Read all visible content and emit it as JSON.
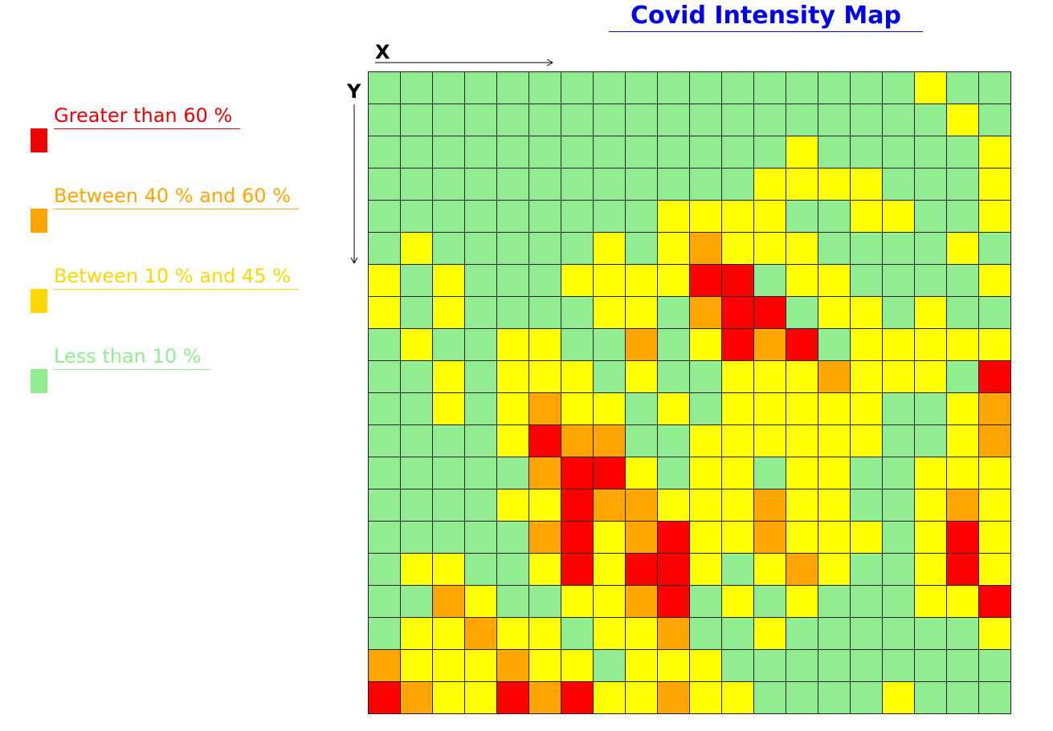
{
  "title": "Covid Intensity Map",
  "axes": {
    "x_label": "X",
    "y_label": "Y"
  },
  "legend": [
    {
      "label": "Greater than 60 %",
      "color": "#ee0000",
      "level": 3
    },
    {
      "label": "Between 40 % and 60 %",
      "color": "#ffa500",
      "level": 2
    },
    {
      "label": "Between 10 % and 45 %",
      "color": "#ffd700",
      "level": 1
    },
    {
      "label": "Less than 10 %",
      "color": "#90ee90",
      "level": 0
    }
  ],
  "chart_data": {
    "type": "heatmap",
    "title": "Covid Intensity Map",
    "xlabel": "X",
    "ylabel": "Y",
    "columns": 20,
    "rows": 20,
    "levels": {
      "0": {
        "label": "Less than 10 %",
        "color": "#90ee90"
      },
      "1": {
        "label": "Between 10 % and 45 %",
        "color": "#ffff00"
      },
      "2": {
        "label": "Between 40 % and 60 %",
        "color": "#ffa500"
      },
      "3": {
        "label": "Greater than 60 %",
        "color": "#ff0000"
      }
    },
    "grid": [
      [
        0,
        0,
        0,
        0,
        0,
        0,
        0,
        0,
        0,
        0,
        0,
        0,
        0,
        0,
        0,
        0,
        0,
        1,
        0,
        0
      ],
      [
        0,
        0,
        0,
        0,
        0,
        0,
        0,
        0,
        0,
        0,
        0,
        0,
        0,
        0,
        0,
        0,
        0,
        0,
        1,
        0
      ],
      [
        0,
        0,
        0,
        0,
        0,
        0,
        0,
        0,
        0,
        0,
        0,
        0,
        0,
        1,
        0,
        0,
        0,
        0,
        0,
        1
      ],
      [
        0,
        0,
        0,
        0,
        0,
        0,
        0,
        0,
        0,
        0,
        0,
        0,
        1,
        1,
        1,
        1,
        0,
        0,
        0,
        1
      ],
      [
        0,
        0,
        0,
        0,
        0,
        0,
        0,
        0,
        0,
        1,
        1,
        1,
        1,
        0,
        0,
        1,
        1,
        0,
        0,
        1
      ],
      [
        0,
        1,
        0,
        0,
        0,
        0,
        0,
        1,
        0,
        1,
        2,
        1,
        1,
        1,
        0,
        0,
        0,
        0,
        1,
        0
      ],
      [
        1,
        0,
        1,
        0,
        0,
        0,
        1,
        1,
        1,
        1,
        3,
        3,
        0,
        1,
        1,
        0,
        0,
        0,
        0,
        1
      ],
      [
        1,
        0,
        1,
        0,
        0,
        0,
        0,
        1,
        1,
        0,
        2,
        3,
        3,
        0,
        1,
        1,
        0,
        1,
        0,
        0
      ],
      [
        0,
        1,
        0,
        0,
        1,
        1,
        0,
        0,
        2,
        0,
        1,
        3,
        2,
        3,
        0,
        1,
        1,
        1,
        1,
        1
      ],
      [
        0,
        0,
        1,
        0,
        1,
        1,
        1,
        0,
        1,
        0,
        0,
        1,
        1,
        1,
        2,
        1,
        1,
        1,
        0,
        3
      ],
      [
        0,
        0,
        1,
        0,
        1,
        2,
        1,
        1,
        0,
        1,
        0,
        1,
        1,
        1,
        1,
        1,
        0,
        0,
        1,
        2
      ],
      [
        0,
        0,
        0,
        0,
        1,
        3,
        2,
        2,
        0,
        0,
        1,
        1,
        1,
        1,
        1,
        1,
        0,
        0,
        1,
        2
      ],
      [
        0,
        0,
        0,
        0,
        0,
        2,
        3,
        3,
        1,
        0,
        1,
        1,
        0,
        1,
        1,
        0,
        0,
        1,
        1,
        1
      ],
      [
        0,
        0,
        0,
        0,
        1,
        1,
        3,
        2,
        2,
        1,
        1,
        1,
        2,
        1,
        1,
        0,
        0,
        1,
        2,
        1
      ],
      [
        0,
        0,
        0,
        0,
        0,
        2,
        3,
        1,
        2,
        3,
        1,
        1,
        2,
        1,
        1,
        1,
        0,
        1,
        3,
        1
      ],
      [
        0,
        1,
        1,
        0,
        0,
        1,
        3,
        1,
        3,
        3,
        1,
        0,
        1,
        2,
        1,
        0,
        0,
        1,
        3,
        1
      ],
      [
        0,
        0,
        2,
        1,
        0,
        0,
        1,
        1,
        2,
        3,
        0,
        1,
        0,
        1,
        0,
        0,
        0,
        1,
        1,
        3
      ],
      [
        0,
        1,
        1,
        2,
        1,
        1,
        0,
        1,
        1,
        2,
        0,
        0,
        1,
        0,
        0,
        0,
        0,
        0,
        0,
        1
      ],
      [
        2,
        1,
        1,
        1,
        2,
        1,
        1,
        0,
        1,
        1,
        1,
        0,
        0,
        0,
        0,
        0,
        0,
        0,
        0,
        0
      ],
      [
        3,
        2,
        1,
        1,
        3,
        2,
        3,
        1,
        1,
        2,
        1,
        1,
        0,
        0,
        0,
        0,
        1,
        0,
        0,
        0
      ]
    ]
  }
}
